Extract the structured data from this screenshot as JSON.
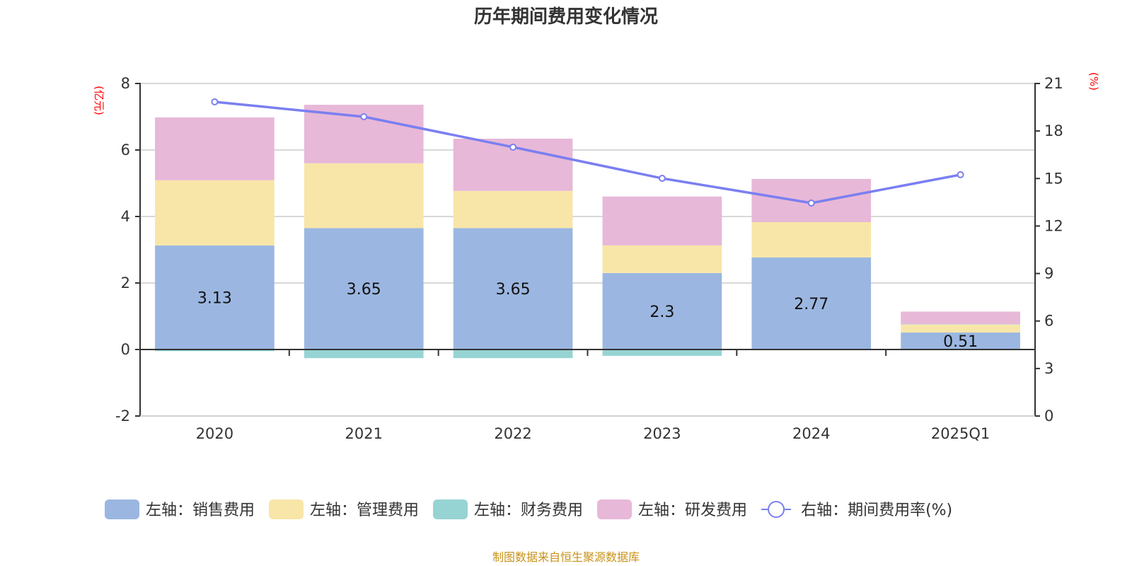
{
  "chart_data": {
    "type": "bar",
    "title": "历年期间费用变化情况",
    "categories": [
      "2020",
      "2021",
      "2022",
      "2023",
      "2024",
      "2025Q1"
    ],
    "left_axis": {
      "label": "(亿元)",
      "ylim": [
        -2,
        8
      ],
      "ticks": [
        -2,
        0,
        2,
        4,
        6,
        8
      ]
    },
    "right_axis": {
      "label": "(%)",
      "ylim": [
        0,
        21
      ],
      "ticks": [
        0,
        3,
        6,
        9,
        12,
        15,
        18,
        21
      ]
    },
    "grid": true,
    "legend_position": "bottom",
    "series": [
      {
        "name": "左轴：销售费用",
        "type": "bar",
        "axis": "left",
        "stack": "s",
        "color": "#9bb7e1",
        "values": [
          3.13,
          3.65,
          3.65,
          2.3,
          2.77,
          0.51
        ],
        "labels": [
          "3.13",
          "3.65",
          "3.65",
          "2.3",
          "2.77",
          "0.51"
        ]
      },
      {
        "name": "左轴：管理费用",
        "type": "bar",
        "axis": "left",
        "stack": "s",
        "color": "#f8e6a8",
        "values": [
          1.96,
          1.95,
          1.12,
          0.83,
          1.06,
          0.24
        ]
      },
      {
        "name": "左轴：财务费用",
        "type": "bar",
        "axis": "left",
        "stack": "s",
        "color": "#96d4d3",
        "values": [
          -0.05,
          -0.26,
          -0.26,
          -0.19,
          -0.01,
          0.01
        ]
      },
      {
        "name": "左轴：研发费用",
        "type": "bar",
        "axis": "left",
        "stack": "s",
        "color": "#e7b8d8",
        "values": [
          1.89,
          1.76,
          1.57,
          1.47,
          1.3,
          0.38
        ]
      },
      {
        "name": "右轴：期间费用率(%)",
        "type": "line",
        "axis": "right",
        "color": "#7a7ff0",
        "values": [
          19.84,
          18.9,
          16.98,
          15.01,
          13.45,
          15.24
        ]
      }
    ],
    "source_note": "制图数据来自恒生聚源数据库"
  }
}
